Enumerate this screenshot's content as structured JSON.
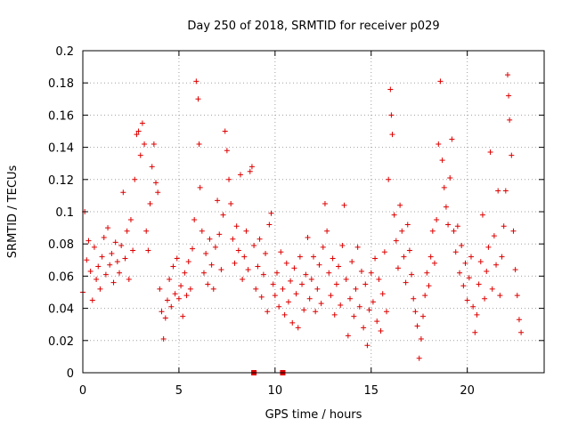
{
  "chart_data": {
    "type": "scatter",
    "title": "Day 250 of 2018, SRMTID for receiver p029",
    "xlabel": "GPS time / hours",
    "ylabel": "SRMTID / TECUs",
    "xlim": [
      0,
      24
    ],
    "ylim": [
      0,
      0.2
    ],
    "xticks": [
      "0",
      "5",
      "10",
      "15",
      "20"
    ],
    "yticks": [
      "0",
      "0.02",
      "0.04",
      "0.06",
      "0.08",
      "0.1",
      "0.12",
      "0.14",
      "0.16",
      "0.18",
      "0.2"
    ],
    "grid": true,
    "marker": "plus",
    "color": "#dd0000",
    "series": [
      {
        "name": "SRMTID",
        "points": [
          [
            0.0,
            0.05
          ],
          [
            0.1,
            0.1
          ],
          [
            0.2,
            0.07
          ],
          [
            0.3,
            0.082
          ],
          [
            0.4,
            0.063
          ],
          [
            0.5,
            0.045
          ],
          [
            0.6,
            0.078
          ],
          [
            0.7,
            0.058
          ],
          [
            0.8,
            0.066
          ],
          [
            0.9,
            0.052
          ],
          [
            1.0,
            0.072
          ],
          [
            1.1,
            0.084
          ],
          [
            1.2,
            0.061
          ],
          [
            1.3,
            0.09
          ],
          [
            1.4,
            0.067
          ],
          [
            1.5,
            0.074
          ],
          [
            1.6,
            0.056
          ],
          [
            1.7,
            0.081
          ],
          [
            1.8,
            0.069
          ],
          [
            1.9,
            0.062
          ],
          [
            2.0,
            0.079
          ],
          [
            2.1,
            0.112
          ],
          [
            2.2,
            0.071
          ],
          [
            2.3,
            0.088
          ],
          [
            2.4,
            0.058
          ],
          [
            2.5,
            0.095
          ],
          [
            2.6,
            0.076
          ],
          [
            2.7,
            0.12
          ],
          [
            2.8,
            0.148
          ],
          [
            2.9,
            0.15
          ],
          [
            3.0,
            0.135
          ],
          [
            3.1,
            0.155
          ],
          [
            3.2,
            0.142
          ],
          [
            3.3,
            0.088
          ],
          [
            3.4,
            0.076
          ],
          [
            3.5,
            0.105
          ],
          [
            3.6,
            0.128
          ],
          [
            3.7,
            0.142
          ],
          [
            3.8,
            0.118
          ],
          [
            3.9,
            0.112
          ],
          [
            4.0,
            0.052
          ],
          [
            4.1,
            0.038
          ],
          [
            4.2,
            0.021
          ],
          [
            4.3,
            0.034
          ],
          [
            4.4,
            0.045
          ],
          [
            4.5,
            0.058
          ],
          [
            4.6,
            0.041
          ],
          [
            4.7,
            0.066
          ],
          [
            4.8,
            0.049
          ],
          [
            4.9,
            0.071
          ],
          [
            5.0,
            0.046
          ],
          [
            5.1,
            0.054
          ],
          [
            5.2,
            0.035
          ],
          [
            5.3,
            0.062
          ],
          [
            5.4,
            0.048
          ],
          [
            5.5,
            0.069
          ],
          [
            5.6,
            0.052
          ],
          [
            5.7,
            0.077
          ],
          [
            5.8,
            0.095
          ],
          [
            5.9,
            0.181
          ],
          [
            6.0,
            0.17
          ],
          [
            6.05,
            0.142
          ],
          [
            6.1,
            0.115
          ],
          [
            6.2,
            0.088
          ],
          [
            6.3,
            0.062
          ],
          [
            6.4,
            0.074
          ],
          [
            6.5,
            0.055
          ],
          [
            6.6,
            0.083
          ],
          [
            6.7,
            0.067
          ],
          [
            6.8,
            0.052
          ],
          [
            6.9,
            0.078
          ],
          [
            7.0,
            0.107
          ],
          [
            7.1,
            0.086
          ],
          [
            7.2,
            0.064
          ],
          [
            7.3,
            0.098
          ],
          [
            7.4,
            0.15
          ],
          [
            7.5,
            0.138
          ],
          [
            7.6,
            0.12
          ],
          [
            7.7,
            0.105
          ],
          [
            7.8,
            0.083
          ],
          [
            7.9,
            0.068
          ],
          [
            8.0,
            0.091
          ],
          [
            8.1,
            0.076
          ],
          [
            8.2,
            0.123
          ],
          [
            8.3,
            0.058
          ],
          [
            8.4,
            0.072
          ],
          [
            8.5,
            0.088
          ],
          [
            8.6,
            0.064
          ],
          [
            8.7,
            0.125
          ],
          [
            8.8,
            0.128
          ],
          [
            8.9,
            0.079
          ],
          [
            9.0,
            0.052
          ],
          [
            9.1,
            0.066
          ],
          [
            9.2,
            0.083
          ],
          [
            9.3,
            0.047
          ],
          [
            9.4,
            0.061
          ],
          [
            9.5,
            0.074
          ],
          [
            9.6,
            0.038
          ],
          [
            9.7,
            0.092
          ],
          [
            9.8,
            0.099
          ],
          [
            9.9,
            0.055
          ],
          [
            10.0,
            0.048
          ],
          [
            10.1,
            0.062
          ],
          [
            10.2,
            0.041
          ],
          [
            10.3,
            0.075
          ],
          [
            10.4,
            0.052
          ],
          [
            10.5,
            0.036
          ],
          [
            10.6,
            0.068
          ],
          [
            10.7,
            0.044
          ],
          [
            10.8,
            0.057
          ],
          [
            10.9,
            0.031
          ],
          [
            11.0,
            0.065
          ],
          [
            11.1,
            0.049
          ],
          [
            11.2,
            0.028
          ],
          [
            11.3,
            0.072
          ],
          [
            11.4,
            0.055
          ],
          [
            11.5,
            0.039
          ],
          [
            11.6,
            0.061
          ],
          [
            11.7,
            0.084
          ],
          [
            11.8,
            0.046
          ],
          [
            11.9,
            0.058
          ],
          [
            12.0,
            0.072
          ],
          [
            12.1,
            0.038
          ],
          [
            12.2,
            0.052
          ],
          [
            12.3,
            0.067
          ],
          [
            12.4,
            0.043
          ],
          [
            12.5,
            0.078
          ],
          [
            12.6,
            0.105
          ],
          [
            12.7,
            0.088
          ],
          [
            12.8,
            0.062
          ],
          [
            12.9,
            0.048
          ],
          [
            13.0,
            0.071
          ],
          [
            13.1,
            0.036
          ],
          [
            13.2,
            0.055
          ],
          [
            13.3,
            0.066
          ],
          [
            13.4,
            0.042
          ],
          [
            13.5,
            0.079
          ],
          [
            13.6,
            0.104
          ],
          [
            13.7,
            0.058
          ],
          [
            13.8,
            0.023
          ],
          [
            13.9,
            0.046
          ],
          [
            14.0,
            0.069
          ],
          [
            14.1,
            0.035
          ],
          [
            14.2,
            0.052
          ],
          [
            14.3,
            0.078
          ],
          [
            14.4,
            0.041
          ],
          [
            14.5,
            0.063
          ],
          [
            14.6,
            0.028
          ],
          [
            14.7,
            0.055
          ],
          [
            14.8,
            0.017
          ],
          [
            14.9,
            0.039
          ],
          [
            15.0,
            0.062
          ],
          [
            15.1,
            0.044
          ],
          [
            15.2,
            0.071
          ],
          [
            15.3,
            0.032
          ],
          [
            15.4,
            0.058
          ],
          [
            15.5,
            0.026
          ],
          [
            15.6,
            0.049
          ],
          [
            15.7,
            0.075
          ],
          [
            15.8,
            0.038
          ],
          [
            15.9,
            0.12
          ],
          [
            16.0,
            0.176
          ],
          [
            16.05,
            0.16
          ],
          [
            16.1,
            0.148
          ],
          [
            16.2,
            0.098
          ],
          [
            16.3,
            0.082
          ],
          [
            16.4,
            0.065
          ],
          [
            16.5,
            0.104
          ],
          [
            16.6,
            0.088
          ],
          [
            16.7,
            0.072
          ],
          [
            16.8,
            0.056
          ],
          [
            16.9,
            0.092
          ],
          [
            17.0,
            0.076
          ],
          [
            17.1,
            0.061
          ],
          [
            17.2,
            0.046
          ],
          [
            17.3,
            0.038
          ],
          [
            17.4,
            0.029
          ],
          [
            17.5,
            0.009
          ],
          [
            17.6,
            0.021
          ],
          [
            17.7,
            0.035
          ],
          [
            17.8,
            0.048
          ],
          [
            17.9,
            0.062
          ],
          [
            18.0,
            0.054
          ],
          [
            18.1,
            0.072
          ],
          [
            18.2,
            0.088
          ],
          [
            18.3,
            0.068
          ],
          [
            18.4,
            0.095
          ],
          [
            18.5,
            0.142
          ],
          [
            18.6,
            0.181
          ],
          [
            18.7,
            0.132
          ],
          [
            18.8,
            0.115
          ],
          [
            18.9,
            0.103
          ],
          [
            19.0,
            0.092
          ],
          [
            19.1,
            0.121
          ],
          [
            19.2,
            0.145
          ],
          [
            19.3,
            0.088
          ],
          [
            19.4,
            0.075
          ],
          [
            19.5,
            0.091
          ],
          [
            19.6,
            0.062
          ],
          [
            19.7,
            0.079
          ],
          [
            19.8,
            0.054
          ],
          [
            19.9,
            0.068
          ],
          [
            20.0,
            0.045
          ],
          [
            20.1,
            0.059
          ],
          [
            20.2,
            0.072
          ],
          [
            20.3,
            0.041
          ],
          [
            20.4,
            0.025
          ],
          [
            20.5,
            0.036
          ],
          [
            20.6,
            0.055
          ],
          [
            20.7,
            0.069
          ],
          [
            20.8,
            0.098
          ],
          [
            20.9,
            0.046
          ],
          [
            21.0,
            0.063
          ],
          [
            21.1,
            0.078
          ],
          [
            21.2,
            0.137
          ],
          [
            21.3,
            0.052
          ],
          [
            21.4,
            0.085
          ],
          [
            21.5,
            0.067
          ],
          [
            21.6,
            0.113
          ],
          [
            21.7,
            0.048
          ],
          [
            21.8,
            0.072
          ],
          [
            21.9,
            0.091
          ],
          [
            22.0,
            0.113
          ],
          [
            22.1,
            0.185
          ],
          [
            22.15,
            0.172
          ],
          [
            22.2,
            0.157
          ],
          [
            22.3,
            0.135
          ],
          [
            22.4,
            0.088
          ],
          [
            22.5,
            0.064
          ],
          [
            22.6,
            0.048
          ],
          [
            22.7,
            0.033
          ],
          [
            22.8,
            0.025
          ]
        ]
      }
    ],
    "zero_markers": [
      [
        8.9,
        0.0
      ],
      [
        10.4,
        0.0
      ]
    ]
  }
}
